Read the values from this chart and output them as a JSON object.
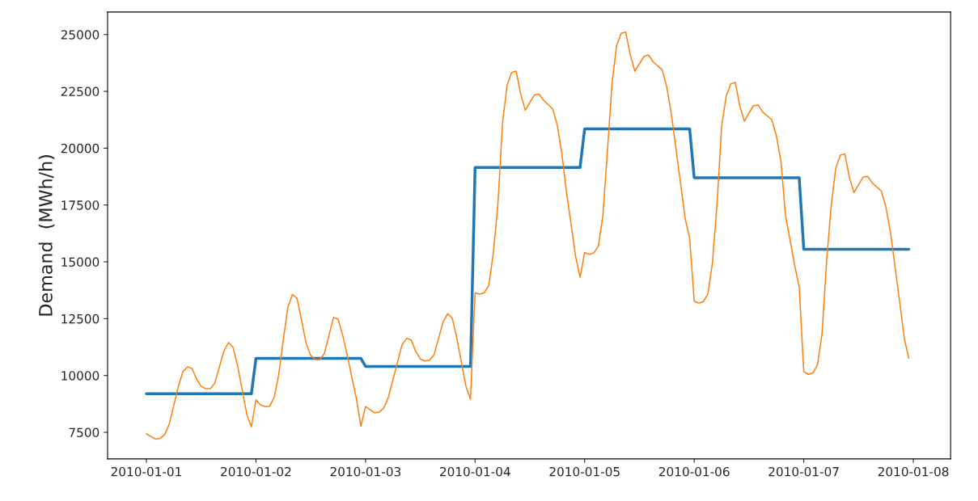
{
  "chart_data": {
    "type": "line",
    "ylabel": "Demand  (MWh/h)",
    "xlim": [
      "2009-12-31T15:30",
      "2010-01-08T08:10"
    ],
    "xticks": [
      "2010-01-01",
      "2010-01-02",
      "2010-01-03",
      "2010-01-04",
      "2010-01-05",
      "2010-01-06",
      "2010-01-07",
      "2010-01-08"
    ],
    "ylim": [
      6330,
      25990
    ],
    "yticks": [
      7500,
      10000,
      12500,
      15000,
      17500,
      20000,
      22500,
      25000
    ],
    "grid": false,
    "legend": false,
    "marker": "none",
    "line_style": "solid",
    "series": [
      {
        "color": "#1f77b4",
        "x": [
          "2010-01-01T00:00",
          "2010-01-01T23:00",
          "2010-01-02T00:00",
          "2010-01-02T23:00",
          "2010-01-03T00:00",
          "2010-01-03T23:00",
          "2010-01-04T00:00",
          "2010-01-04T23:00",
          "2010-01-05T00:00",
          "2010-01-05T23:00",
          "2010-01-06T00:00",
          "2010-01-06T23:00",
          "2010-01-07T00:00",
          "2010-01-07T23:00"
        ],
        "values": [
          9200,
          9200,
          10750,
          10750,
          10400,
          10400,
          19150,
          19150,
          20850,
          20850,
          18700,
          18700,
          15550,
          15550
        ]
      },
      {
        "color": "#ff7f0e",
        "x": [
          "2010-01-01T00:00",
          "2010-01-01T02:00",
          "2010-01-01T03:00",
          "2010-01-01T04:00",
          "2010-01-01T05:00",
          "2010-01-01T07:00",
          "2010-01-01T08:00",
          "2010-01-01T09:00",
          "2010-01-01T10:00",
          "2010-01-01T11:00",
          "2010-01-01T12:00",
          "2010-01-01T13:00",
          "2010-01-01T14:00",
          "2010-01-01T15:00",
          "2010-01-01T17:00",
          "2010-01-01T18:00",
          "2010-01-01T19:00",
          "2010-01-01T20:00",
          "2010-01-01T22:00",
          "2010-01-01T23:00",
          "2010-01-02T00:00",
          "2010-01-02T01:00",
          "2010-01-02T02:00",
          "2010-01-02T03:00",
          "2010-01-02T04:00",
          "2010-01-02T05:00",
          "2010-01-02T06:00",
          "2010-01-02T07:00",
          "2010-01-02T08:00",
          "2010-01-02T09:00",
          "2010-01-02T10:00",
          "2010-01-02T11:00",
          "2010-01-02T12:00",
          "2010-01-02T13:00",
          "2010-01-02T14:00",
          "2010-01-02T15:00",
          "2010-01-02T16:00",
          "2010-01-02T17:00",
          "2010-01-02T18:00",
          "2010-01-02T19:00",
          "2010-01-02T20:00",
          "2010-01-02T22:00",
          "2010-01-02T23:00",
          "2010-01-03T00:00",
          "2010-01-03T02:00",
          "2010-01-03T03:00",
          "2010-01-03T04:00",
          "2010-01-03T05:00",
          "2010-01-03T07:00",
          "2010-01-03T08:00",
          "2010-01-03T09:00",
          "2010-01-03T10:00",
          "2010-01-03T11:00",
          "2010-01-03T12:00",
          "2010-01-03T13:00",
          "2010-01-03T14:00",
          "2010-01-03T15:00",
          "2010-01-03T17:00",
          "2010-01-03T18:00",
          "2010-01-03T19:00",
          "2010-01-03T20:00",
          "2010-01-03T22:00",
          "2010-01-03T23:00",
          "2010-01-04T00:00",
          "2010-01-04T01:00",
          "2010-01-04T02:00",
          "2010-01-04T03:00",
          "2010-01-04T04:00",
          "2010-01-04T05:00",
          "2010-01-04T06:00",
          "2010-01-04T07:00",
          "2010-01-04T08:00",
          "2010-01-04T09:00",
          "2010-01-04T10:00",
          "2010-01-04T11:00",
          "2010-01-04T12:00",
          "2010-01-04T13:00",
          "2010-01-04T14:00",
          "2010-01-04T15:00",
          "2010-01-04T17:00",
          "2010-01-04T18:00",
          "2010-01-04T19:00",
          "2010-01-04T20:00",
          "2010-01-04T22:00",
          "2010-01-04T23:00",
          "2010-01-05T00:00",
          "2010-01-05T01:00",
          "2010-01-05T02:00",
          "2010-01-05T03:00",
          "2010-01-05T04:00",
          "2010-01-05T05:00",
          "2010-01-05T06:00",
          "2010-01-05T07:00",
          "2010-01-05T08:00",
          "2010-01-05T09:00",
          "2010-01-05T10:00",
          "2010-01-05T11:00",
          "2010-01-05T13:00",
          "2010-01-05T14:00",
          "2010-01-05T15:00",
          "2010-01-05T16:00",
          "2010-01-05T17:00",
          "2010-01-05T18:00",
          "2010-01-05T19:00",
          "2010-01-05T21:00",
          "2010-01-05T22:00",
          "2010-01-05T23:00",
          "2010-01-06T00:00",
          "2010-01-06T01:00",
          "2010-01-06T02:00",
          "2010-01-06T03:00",
          "2010-01-06T04:00",
          "2010-01-06T05:00",
          "2010-01-06T06:00",
          "2010-01-06T07:00",
          "2010-01-06T08:00",
          "2010-01-06T09:00",
          "2010-01-06T10:00",
          "2010-01-06T11:00",
          "2010-01-06T12:00",
          "2010-01-06T13:00",
          "2010-01-06T14:00",
          "2010-01-06T15:00",
          "2010-01-06T17:00",
          "2010-01-06T18:00",
          "2010-01-06T19:00",
          "2010-01-06T20:00",
          "2010-01-06T22:00",
          "2010-01-06T23:00",
          "2010-01-07T00:00",
          "2010-01-07T01:00",
          "2010-01-07T02:00",
          "2010-01-07T03:00",
          "2010-01-07T04:00",
          "2010-01-07T05:00",
          "2010-01-07T06:00",
          "2010-01-07T07:00",
          "2010-01-07T08:00",
          "2010-01-07T09:00",
          "2010-01-07T10:00",
          "2010-01-07T11:00",
          "2010-01-07T13:00",
          "2010-01-07T14:00",
          "2010-01-07T15:00",
          "2010-01-07T17:00",
          "2010-01-07T18:00",
          "2010-01-07T19:00",
          "2010-01-07T21:00",
          "2010-01-07T22:00",
          "2010-01-07T23:00"
        ],
        "values": [
          7430,
          7200,
          7230,
          7400,
          7850,
          9520,
          10170,
          10380,
          10310,
          9840,
          9520,
          9420,
          9420,
          9670,
          11090,
          11450,
          11230,
          10410,
          8290,
          7740,
          8920,
          8710,
          8630,
          8650,
          9040,
          10050,
          11590,
          13010,
          13570,
          13390,
          12420,
          11410,
          10880,
          10700,
          10700,
          10980,
          11770,
          12560,
          12480,
          11770,
          10880,
          8980,
          7770,
          8630,
          8360,
          8390,
          8570,
          9040,
          10580,
          11350,
          11630,
          11560,
          11060,
          10730,
          10640,
          10670,
          10900,
          12360,
          12720,
          12520,
          11650,
          9520,
          8960,
          13630,
          13580,
          13640,
          13960,
          15390,
          17530,
          21080,
          22760,
          23330,
          23390,
          22380,
          21670,
          22020,
          22340,
          22380,
          22110,
          21730,
          21020,
          19770,
          18110,
          15260,
          14320,
          15410,
          15330,
          15390,
          15680,
          17040,
          19890,
          22860,
          24510,
          25050,
          25110,
          24100,
          23390,
          24040,
          24100,
          23800,
          23620,
          23450,
          22680,
          21490,
          18470,
          16930,
          16040,
          13270,
          13190,
          13250,
          13580,
          14970,
          17520,
          20940,
          22290,
          22830,
          22890,
          21840,
          21190,
          21550,
          21870,
          21900,
          21590,
          21250,
          20540,
          19420,
          17040,
          14850,
          13900,
          10170,
          10050,
          10110,
          10460,
          11830,
          15030,
          17460,
          19120,
          19690,
          19750,
          18700,
          18050,
          18730,
          18760,
          18470,
          18110,
          17400,
          16280,
          13250,
          11650,
          10760
        ]
      }
    ]
  }
}
